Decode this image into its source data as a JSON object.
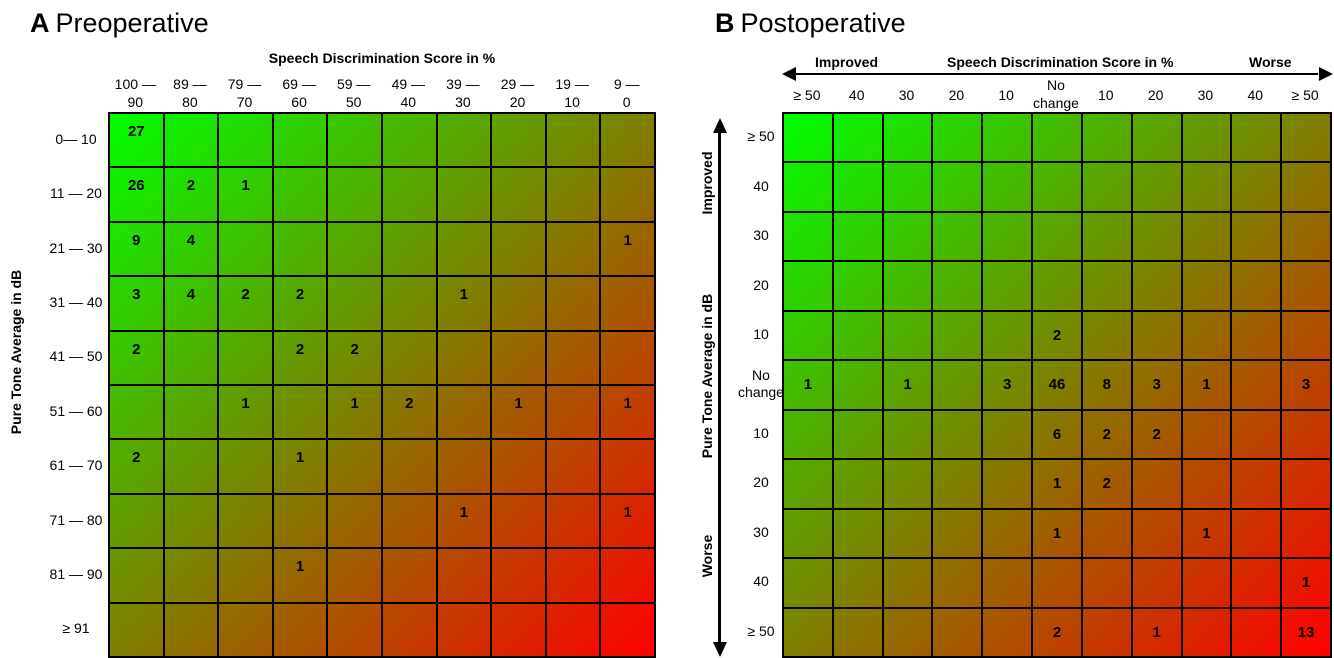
{
  "panel_a": {
    "letter": "A",
    "title": "Preoperative"
  },
  "panel_b": {
    "letter": "B",
    "title": "Postoperative"
  },
  "chart_data": [
    {
      "type": "heatmap",
      "panel": "A",
      "title": "Preoperative",
      "xlabel": "Speech Discrimination Score in %",
      "ylabel": "Pure Tone Average in dB",
      "columns": [
        [
          "100 —",
          "90"
        ],
        [
          "89 —",
          "80"
        ],
        [
          "79 —",
          "70"
        ],
        [
          "69 —",
          "60"
        ],
        [
          "59 —",
          "50"
        ],
        [
          "49 —",
          "40"
        ],
        [
          "39 —",
          "30"
        ],
        [
          "29 —",
          "20"
        ],
        [
          "19 —",
          "10"
        ],
        [
          "9 —",
          "0"
        ]
      ],
      "rows": [
        "0— 10",
        "11 — 20",
        "21 — 30",
        "31 — 40",
        "41 — 50",
        "51 — 60",
        "61 — 70",
        "71 — 80",
        "81 — 90",
        "≥ 91"
      ],
      "values": [
        [
          27,
          null,
          null,
          null,
          null,
          null,
          null,
          null,
          null,
          null
        ],
        [
          26,
          2,
          1,
          null,
          null,
          null,
          null,
          null,
          null,
          null
        ],
        [
          9,
          4,
          null,
          null,
          null,
          null,
          null,
          null,
          null,
          1
        ],
        [
          3,
          4,
          2,
          2,
          null,
          null,
          1,
          null,
          null,
          null
        ],
        [
          2,
          null,
          null,
          2,
          2,
          null,
          null,
          null,
          null,
          null
        ],
        [
          null,
          null,
          1,
          null,
          1,
          2,
          null,
          1,
          null,
          1
        ],
        [
          2,
          null,
          null,
          1,
          null,
          null,
          null,
          null,
          null,
          null
        ],
        [
          null,
          null,
          null,
          null,
          null,
          null,
          1,
          null,
          null,
          1
        ],
        [
          null,
          null,
          null,
          1,
          null,
          null,
          null,
          null,
          null,
          null
        ],
        [
          null,
          null,
          null,
          null,
          null,
          null,
          null,
          null,
          null,
          null
        ]
      ],
      "colors": {
        "best": "#00ff00",
        "mid": "#7f7f00",
        "worst": "#ff0000"
      }
    },
    {
      "type": "heatmap",
      "panel": "B",
      "title": "Postoperative",
      "xlabel": "Speech Discrimination Score in %",
      "ylabel": "Pure Tone Average in dB",
      "x_direction_labels": {
        "left": "Improved",
        "right": "Worse"
      },
      "y_direction_labels": {
        "top": "Improved",
        "bottom": "Worse"
      },
      "columns": [
        [
          "≥ 50"
        ],
        [
          "40"
        ],
        [
          "30"
        ],
        [
          "20"
        ],
        [
          "10"
        ],
        [
          "No",
          "change"
        ],
        [
          "10"
        ],
        [
          "20"
        ],
        [
          "30"
        ],
        [
          "40"
        ],
        [
          "≥ 50"
        ]
      ],
      "rows": [
        [
          "≥ 50"
        ],
        [
          "40"
        ],
        [
          "30"
        ],
        [
          "20"
        ],
        [
          "10"
        ],
        [
          "No",
          "change"
        ],
        [
          "10"
        ],
        [
          "20"
        ],
        [
          "30"
        ],
        [
          "40"
        ],
        [
          "≥ 50"
        ]
      ],
      "values": [
        [
          null,
          null,
          null,
          null,
          null,
          null,
          null,
          null,
          null,
          null,
          null
        ],
        [
          null,
          null,
          null,
          null,
          null,
          null,
          null,
          null,
          null,
          null,
          null
        ],
        [
          null,
          null,
          null,
          null,
          null,
          null,
          null,
          null,
          null,
          null,
          null
        ],
        [
          null,
          null,
          null,
          null,
          null,
          null,
          null,
          null,
          null,
          null,
          null
        ],
        [
          null,
          null,
          null,
          null,
          null,
          2,
          null,
          null,
          null,
          null,
          null
        ],
        [
          1,
          null,
          1,
          null,
          3,
          46,
          8,
          3,
          1,
          null,
          3
        ],
        [
          null,
          null,
          null,
          null,
          null,
          6,
          2,
          2,
          null,
          null,
          null
        ],
        [
          null,
          null,
          null,
          null,
          null,
          1,
          2,
          null,
          null,
          null,
          null
        ],
        [
          null,
          null,
          null,
          null,
          null,
          1,
          null,
          null,
          1,
          null,
          null
        ],
        [
          null,
          null,
          null,
          null,
          null,
          null,
          null,
          null,
          null,
          null,
          1
        ],
        [
          null,
          null,
          null,
          null,
          null,
          2,
          null,
          1,
          null,
          null,
          13
        ]
      ],
      "colors": {
        "best": "#00ff00",
        "mid": "#7f7f00",
        "worst": "#ff0000"
      }
    }
  ]
}
